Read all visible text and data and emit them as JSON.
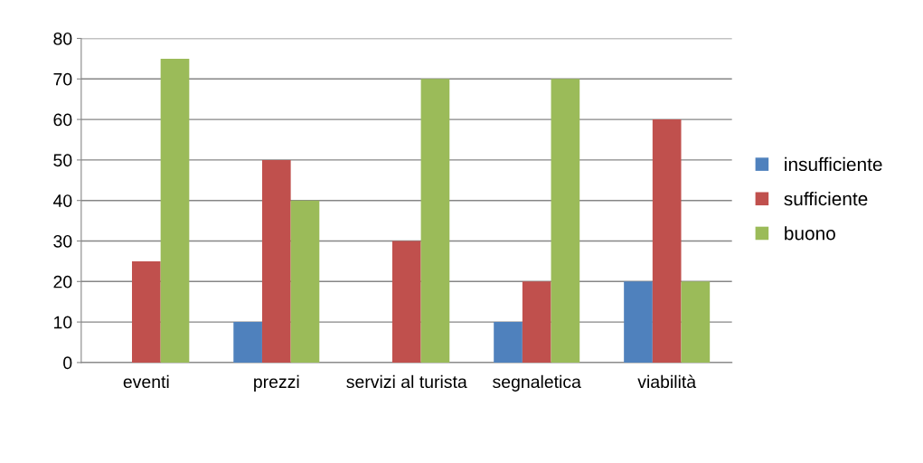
{
  "chart_data": {
    "type": "bar",
    "categories": [
      "eventi",
      "prezzi",
      "servizi al turista",
      "segnaletica",
      "viabilità"
    ],
    "series": [
      {
        "name": "insufficiente",
        "color": "#4f81bd",
        "values": [
          0,
          10,
          0,
          10,
          20
        ]
      },
      {
        "name": "sufficiente",
        "color": "#c0504d",
        "values": [
          25,
          50,
          30,
          20,
          60
        ]
      },
      {
        "name": "buono",
        "color": "#9bbb59",
        "values": [
          75,
          40,
          70,
          70,
          20
        ]
      }
    ],
    "ylim": [
      0,
      80
    ],
    "yticks": [
      0,
      10,
      20,
      30,
      40,
      50,
      60,
      70,
      80
    ],
    "grid": "y",
    "legend": "right"
  }
}
